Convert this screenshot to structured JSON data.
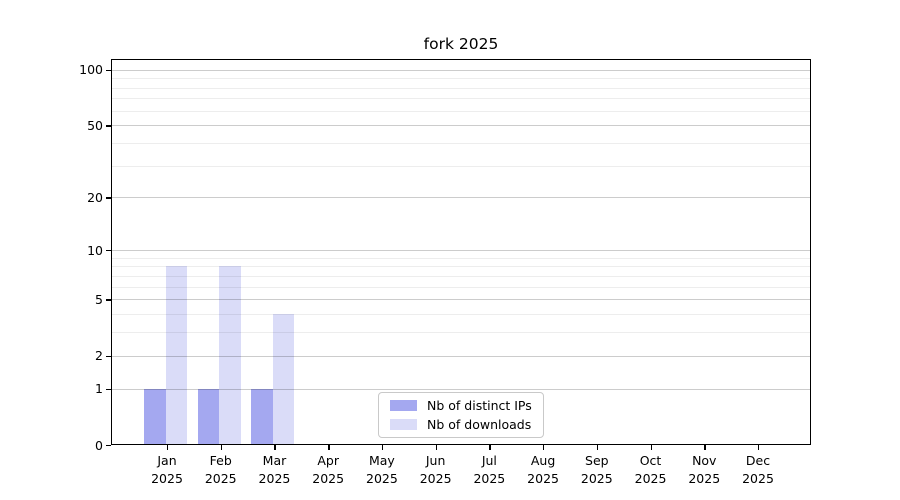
{
  "chart_data": {
    "type": "bar",
    "title": "fork 2025",
    "year": "2025",
    "categories": [
      "Jan",
      "Feb",
      "Mar",
      "Apr",
      "May",
      "Jun",
      "Jul",
      "Aug",
      "Sep",
      "Oct",
      "Nov",
      "Dec"
    ],
    "series": [
      {
        "name": "Nb of distinct IPs",
        "color": "#a4a8f0",
        "values": [
          1,
          1,
          1,
          0,
          0,
          0,
          0,
          0,
          0,
          0,
          0,
          0
        ]
      },
      {
        "name": "Nb of downloads",
        "color": "#dadcf8",
        "values": [
          8,
          8,
          4,
          0,
          0,
          0,
          0,
          0,
          0,
          0,
          0,
          0
        ]
      }
    ],
    "y_axis": {
      "scale": "log1p",
      "ticks": [
        0,
        1,
        2,
        5,
        10,
        20,
        50,
        100
      ],
      "minor_ticks": [
        3,
        4,
        6,
        7,
        8,
        9,
        30,
        40,
        60,
        70,
        80,
        90
      ],
      "max": 115
    },
    "x_axis": {
      "tick_label_line2": "2025"
    },
    "grid": {
      "major_color": "rgba(0,0,0,0.20)",
      "minor_color": "rgba(0,0,0,0.07)"
    },
    "legend": {
      "position": "bottom-center"
    },
    "colors": {
      "axis": "#000000",
      "background": "#ffffff"
    }
  }
}
